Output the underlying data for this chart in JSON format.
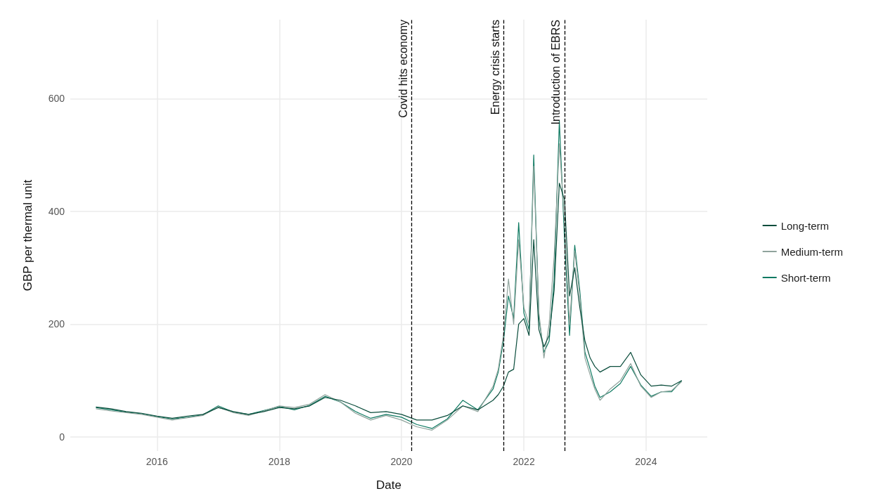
{
  "chart_data": {
    "type": "line",
    "xlabel": "Date",
    "ylabel": "GBP per thermal unit",
    "x": [
      "2015-01",
      "2015-04",
      "2015-07",
      "2015-10",
      "2016-01",
      "2016-04",
      "2016-07",
      "2016-10",
      "2017-01",
      "2017-04",
      "2017-07",
      "2017-10",
      "2018-01",
      "2018-04",
      "2018-07",
      "2018-10",
      "2019-01",
      "2019-04",
      "2019-07",
      "2019-10",
      "2020-01",
      "2020-04",
      "2020-07",
      "2020-10",
      "2021-01",
      "2021-04",
      "2021-07",
      "2021-08",
      "2021-09",
      "2021-10",
      "2021-11",
      "2021-12",
      "2022-01",
      "2022-02",
      "2022-03",
      "2022-04",
      "2022-05",
      "2022-06",
      "2022-07",
      "2022-08",
      "2022-09",
      "2022-10",
      "2022-11",
      "2022-12",
      "2023-01",
      "2023-02",
      "2023-03",
      "2023-04",
      "2023-06",
      "2023-08",
      "2023-10",
      "2023-12",
      "2024-02",
      "2024-04",
      "2024-06",
      "2024-08"
    ],
    "series": [
      {
        "name": "Long-term",
        "color": "#0b4d3c",
        "values": [
          53,
          50,
          45,
          42,
          37,
          33,
          37,
          40,
          52,
          45,
          40,
          45,
          52,
          50,
          55,
          70,
          65,
          55,
          43,
          45,
          40,
          30,
          30,
          38,
          55,
          48,
          65,
          75,
          90,
          115,
          120,
          200,
          210,
          180,
          350,
          190,
          160,
          180,
          260,
          450,
          420,
          250,
          300,
          230,
          170,
          140,
          125,
          115,
          125,
          125,
          150,
          110,
          90,
          92,
          90,
          100
        ]
      },
      {
        "name": "Medium-term",
        "color": "#8fa39c",
        "values": [
          50,
          46,
          43,
          40,
          35,
          30,
          34,
          38,
          53,
          43,
          38,
          46,
          55,
          52,
          58,
          75,
          62,
          42,
          30,
          38,
          30,
          18,
          12,
          30,
          55,
          45,
          90,
          120,
          180,
          280,
          200,
          350,
          230,
          200,
          480,
          220,
          140,
          200,
          320,
          520,
          380,
          200,
          330,
          250,
          140,
          110,
          85,
          65,
          85,
          100,
          130,
          90,
          70,
          80,
          82,
          98
        ]
      },
      {
        "name": "Short-term",
        "color": "#0f7a62",
        "values": [
          52,
          48,
          44,
          41,
          36,
          32,
          35,
          39,
          55,
          44,
          40,
          47,
          54,
          48,
          56,
          72,
          62,
          45,
          33,
          40,
          35,
          22,
          15,
          32,
          65,
          48,
          85,
          115,
          170,
          250,
          210,
          380,
          220,
          190,
          500,
          210,
          150,
          170,
          280,
          560,
          350,
          180,
          340,
          260,
          150,
          120,
          90,
          70,
          80,
          95,
          125,
          92,
          72,
          80,
          80,
          100
        ]
      }
    ],
    "xlim": [
      "2014-08",
      "2025-01"
    ],
    "xticks": [
      "2016",
      "2018",
      "2020",
      "2022",
      "2024"
    ],
    "ylim": [
      -25,
      740
    ],
    "yticks": [
      0,
      200,
      400,
      600
    ],
    "ref_lines": [
      {
        "axis": "x",
        "value": "2020-03",
        "label": "Covid hits economy",
        "color": "#000000",
        "line_style": "dashed"
      },
      {
        "axis": "x",
        "value": "2021-09",
        "label": "Energy crisis starts",
        "color": "#000000",
        "line_style": "dashed"
      },
      {
        "axis": "x",
        "value": "2022-09",
        "label": "Introduction of EBRS",
        "color": "#000000",
        "line_style": "dashed"
      }
    ],
    "grid": true,
    "legend": "right",
    "marker": "none",
    "line_style": "solid"
  }
}
